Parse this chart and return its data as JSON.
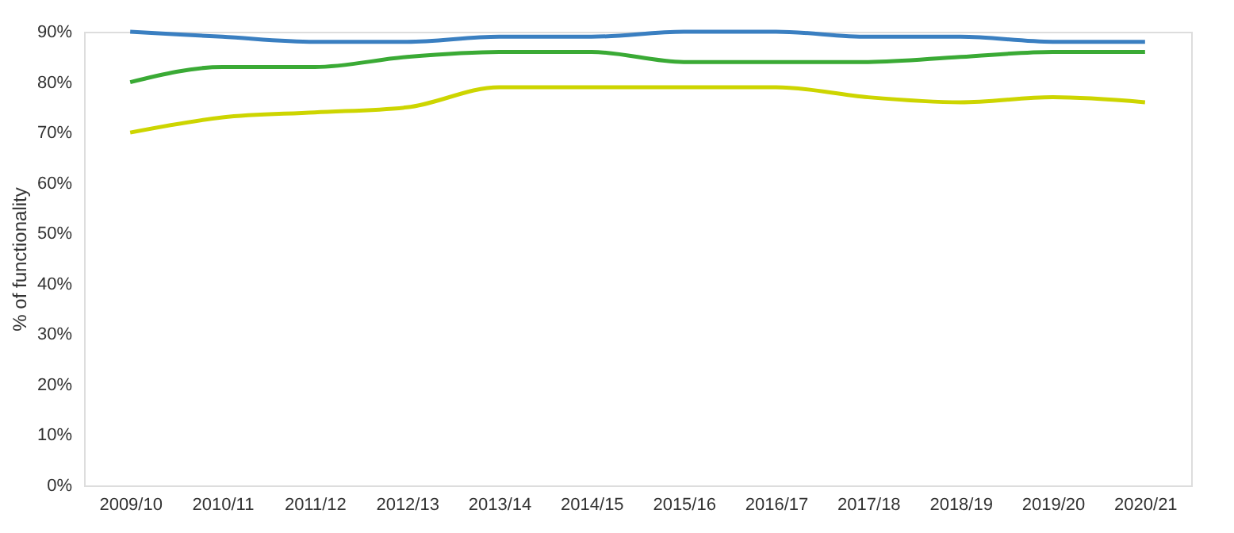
{
  "chart_data": {
    "type": "line",
    "ylabel": "% of functionality",
    "categories": [
      "2009/10",
      "2010/11",
      "2011/12",
      "2012/13",
      "2013/14",
      "2014/15",
      "2015/16",
      "2016/17",
      "2017/18",
      "2018/19",
      "2019/20",
      "2020/21"
    ],
    "series": [
      {
        "color": "#3a7fc1",
        "values": [
          90,
          89,
          88,
          88,
          89,
          89,
          90,
          90,
          89,
          89,
          88,
          88
        ]
      },
      {
        "color": "#3aaa35",
        "values": [
          80,
          83,
          83,
          85,
          86,
          86,
          84,
          84,
          84,
          85,
          86,
          86
        ]
      },
      {
        "color": "#cdd500",
        "values": [
          70,
          73,
          74,
          75,
          79,
          79,
          79,
          79,
          77,
          76,
          77,
          76
        ]
      }
    ],
    "ylim": [
      0,
      90
    ],
    "yticks": [
      {
        "value": 0,
        "label": "0%"
      },
      {
        "value": 10,
        "label": "10%"
      },
      {
        "value": 20,
        "label": "20%"
      },
      {
        "value": 30,
        "label": "30%"
      },
      {
        "value": 40,
        "label": "40%"
      },
      {
        "value": 50,
        "label": "50%"
      },
      {
        "value": 60,
        "label": "60%"
      },
      {
        "value": 70,
        "label": "70%"
      },
      {
        "value": 80,
        "label": "80%"
      },
      {
        "value": 90,
        "label": "90%"
      }
    ],
    "grid": false,
    "legend": false,
    "marker": "none",
    "line_style": "solid"
  }
}
